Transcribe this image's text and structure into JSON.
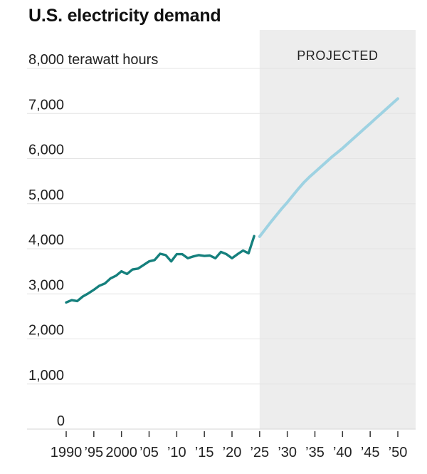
{
  "header": {
    "title": "U.S. electricity demand"
  },
  "chart_data": {
    "type": "line",
    "title": "U.S. electricity demand",
    "ylabel": "terawatt hours",
    "xlim": [
      1990,
      2050
    ],
    "ylim": [
      0,
      8000
    ],
    "grid": "horizontal",
    "projected_band": {
      "label": "PROJECTED",
      "start_year": 2025,
      "band_color": "#ededed"
    },
    "y_ticks": [
      {
        "value": 0,
        "label": "0"
      },
      {
        "value": 1000,
        "label": "1,000"
      },
      {
        "value": 2000,
        "label": "2,000"
      },
      {
        "value": 3000,
        "label": "3,000"
      },
      {
        "value": 4000,
        "label": "4,000"
      },
      {
        "value": 5000,
        "label": "5,000"
      },
      {
        "value": 6000,
        "label": "6,000"
      },
      {
        "value": 7000,
        "label": "7,000"
      },
      {
        "value": 8000,
        "label": "8,000 terawatt hours"
      }
    ],
    "x_ticks": [
      {
        "year": 1990,
        "label": "1990"
      },
      {
        "year": 1995,
        "label": "’95"
      },
      {
        "year": 2000,
        "label": "2000"
      },
      {
        "year": 2005,
        "label": "’05"
      },
      {
        "year": 2010,
        "label": "’10"
      },
      {
        "year": 2015,
        "label": "’15"
      },
      {
        "year": 2020,
        "label": "’20"
      },
      {
        "year": 2025,
        "label": "’25"
      },
      {
        "year": 2030,
        "label": "’30"
      },
      {
        "year": 2035,
        "label": "’35"
      },
      {
        "year": 2040,
        "label": "’40"
      },
      {
        "year": 2045,
        "label": "’45"
      },
      {
        "year": 2050,
        "label": "’50"
      }
    ],
    "series": [
      {
        "name": "historical",
        "color": "#15807d",
        "start_year": 1990,
        "values": [
          2810,
          2860,
          2840,
          2940,
          3010,
          3090,
          3180,
          3230,
          3340,
          3400,
          3500,
          3440,
          3540,
          3560,
          3640,
          3720,
          3750,
          3890,
          3860,
          3720,
          3880,
          3880,
          3790,
          3830,
          3860,
          3840,
          3850,
          3790,
          3930,
          3880,
          3790,
          3880,
          3960,
          3900,
          4280
        ]
      },
      {
        "name": "projected",
        "color": "#9ed2e2",
        "start_year": 2025,
        "values": [
          4270,
          4430,
          4590,
          4740,
          4890,
          5030,
          5180,
          5330,
          5470,
          5590,
          5700,
          5810,
          5920,
          6030,
          6130,
          6230,
          6340,
          6450,
          6560,
          6670,
          6780,
          6890,
          7000,
          7110,
          7220,
          7330
        ]
      }
    ],
    "colors": {
      "gridline": "#e4e4e4",
      "zero_line": "#d6d6d6",
      "tick": "#333333",
      "band": "#ededed"
    }
  }
}
